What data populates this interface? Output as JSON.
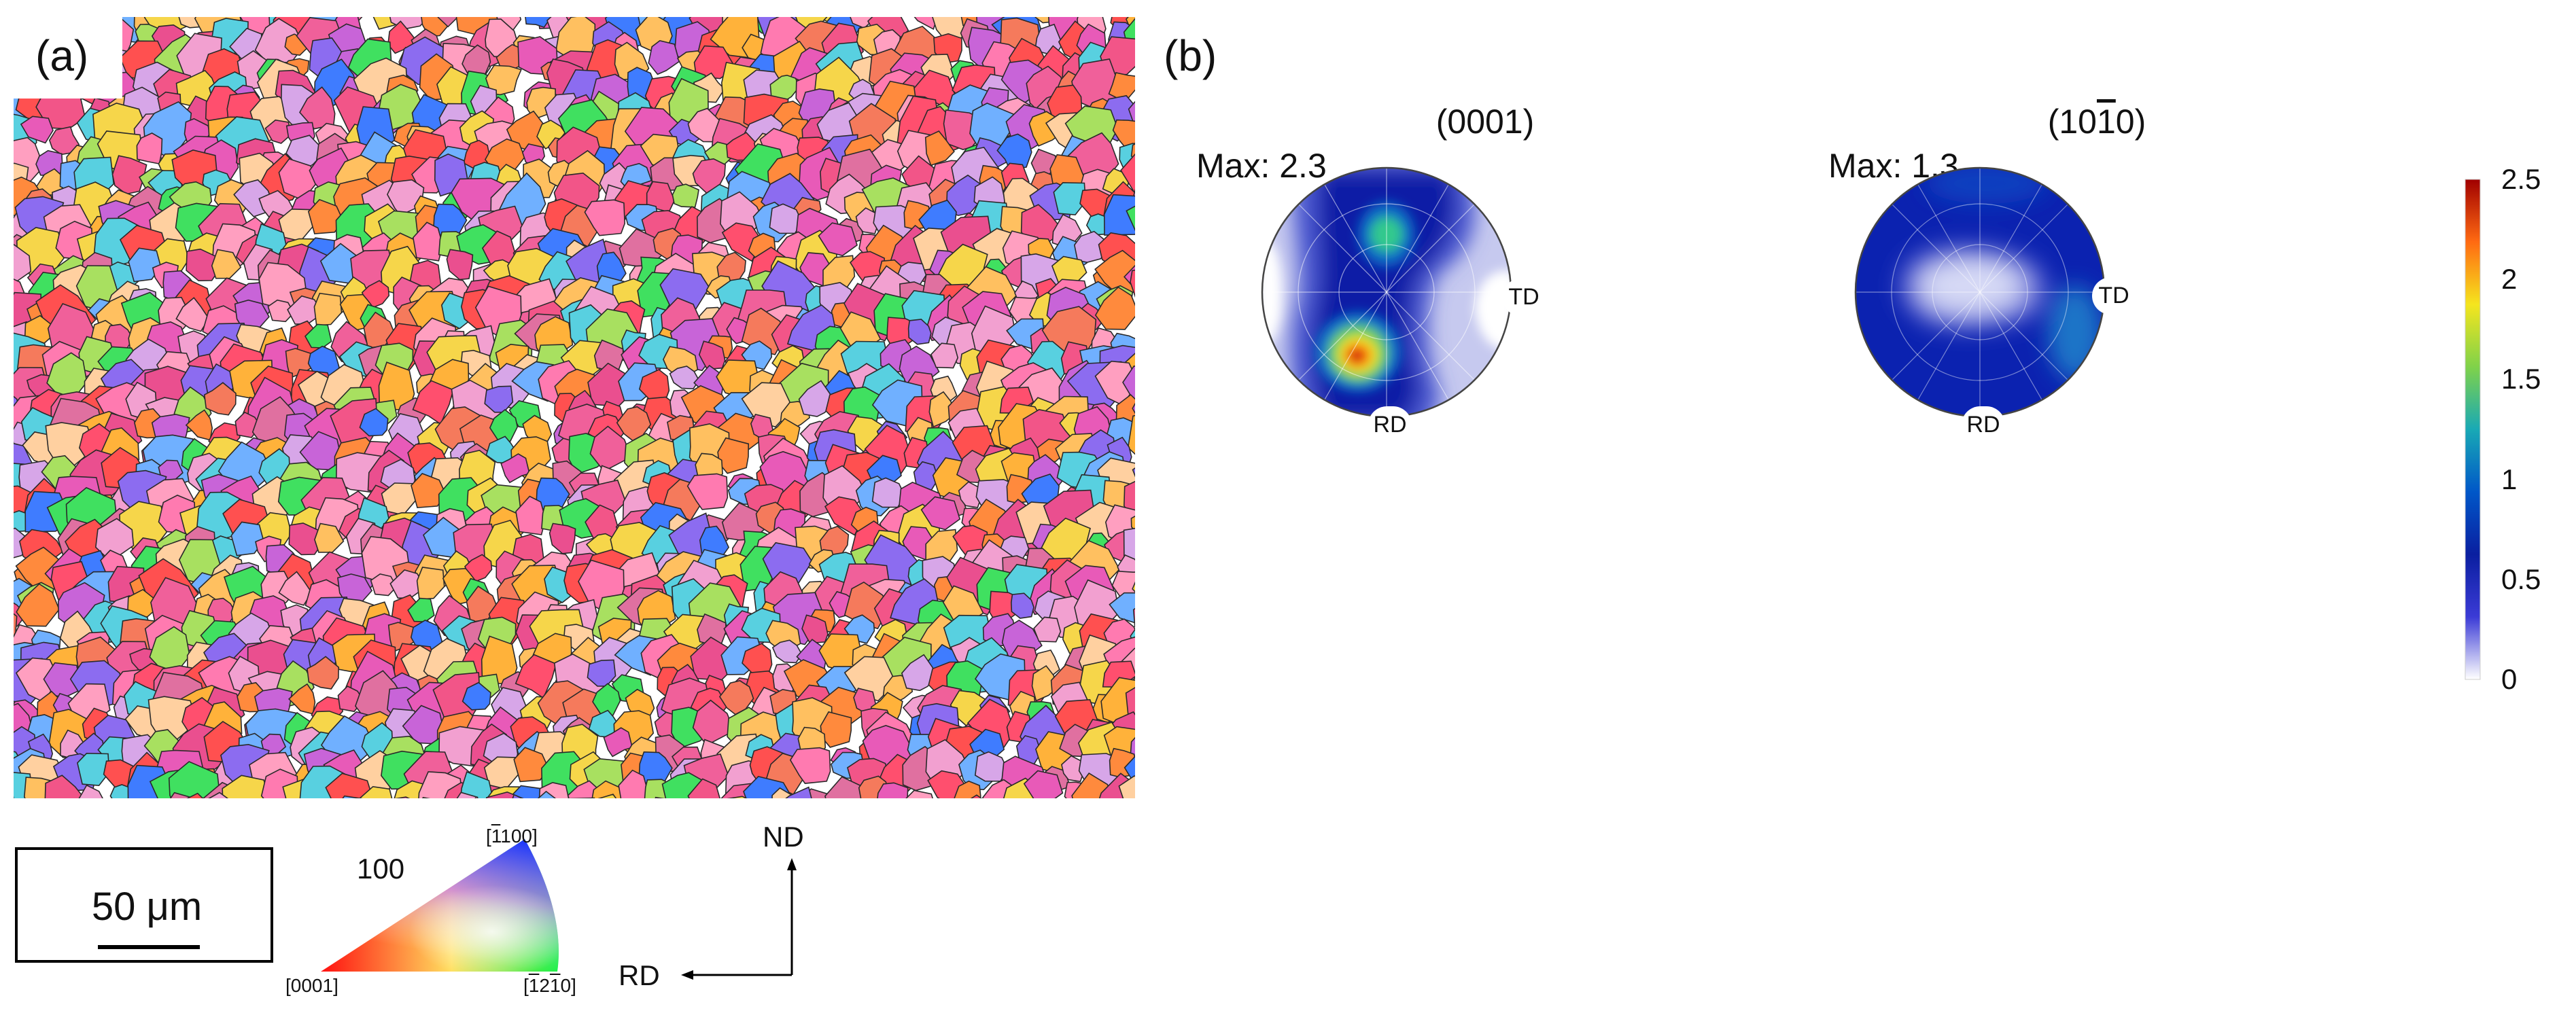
{
  "panels": {
    "a_label": "(a)",
    "b_label": "(b)"
  },
  "scalebar": {
    "text": "50 μm"
  },
  "ipf_key": {
    "value_label": "100",
    "corner_top": "[1100]",
    "corner_top_over": "1",
    "corner_left": "[0001]",
    "corner_right": "[1210]",
    "colors": {
      "red": "#ff0000",
      "green": "#00ff00",
      "blue": "#0000ff"
    }
  },
  "axes_triad": {
    "vertical": "ND",
    "horizontal": "RD"
  },
  "pole_figures": [
    {
      "title": "(0001)",
      "max_label": "Max: 2.3",
      "label_bottom": "RD",
      "label_right": "TD"
    },
    {
      "title_prefix": "(10",
      "title_over": "1",
      "title_suffix": "0)",
      "max_label": "Max: 1.3",
      "label_bottom": "RD",
      "label_right": "TD"
    }
  ],
  "colorbar": {
    "ticks": [
      "2.5",
      "2",
      "1.5",
      "1",
      "0.5",
      "0"
    ],
    "tick_values": [
      2.5,
      2,
      1.5,
      1,
      0.5,
      0
    ],
    "range": [
      0,
      2.5
    ],
    "colors": [
      "#ffffff",
      "#3b3bd6",
      "#0a1fa0",
      "#0057c8",
      "#19a9b5",
      "#7fd24a",
      "#f5e51e",
      "#ff6a12",
      "#a00000"
    ]
  }
}
